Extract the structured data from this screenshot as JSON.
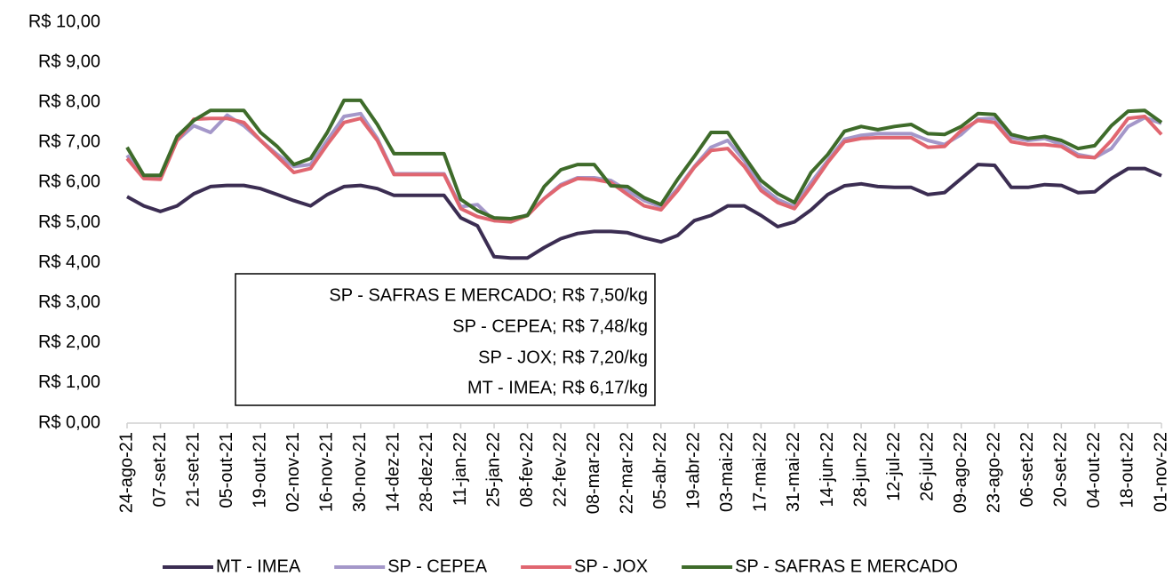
{
  "chart_data": {
    "type": "line",
    "categories": [
      "24-ago-21",
      null,
      "07-set-21",
      null,
      "21-set-21",
      null,
      "05-out-21",
      null,
      "19-out-21",
      null,
      "02-nov-21",
      null,
      "16-nov-21",
      null,
      "30-nov-21",
      null,
      "14-dez-21",
      null,
      "28-dez-21",
      null,
      "11-jan-22",
      null,
      "25-jan-22",
      null,
      "08-fev-22",
      null,
      "22-fev-22",
      null,
      "08-mar-22",
      null,
      "22-mar-22",
      null,
      "05-abr-22",
      null,
      "19-abr-22",
      null,
      "03-mai-22",
      null,
      "17-mai-22",
      null,
      "31-mai-22",
      null,
      "14-jun-22",
      null,
      "28-jun-22",
      null,
      "12-jul-22",
      null,
      "26-jul-22",
      null,
      "09-ago-22",
      null,
      "23-ago-22",
      null,
      "06-set-22",
      null,
      "20-set-22",
      null,
      "04-out-22",
      null,
      "18-out-22",
      null,
      "01-nov-22"
    ],
    "series": [
      {
        "name": "MT - IMEA",
        "color": "#3b2d52",
        "values": [
          5.65,
          5.42,
          5.28,
          5.42,
          5.72,
          5.9,
          5.93,
          5.93,
          5.85,
          5.7,
          5.55,
          5.42,
          5.7,
          5.9,
          5.93,
          5.85,
          5.68,
          5.68,
          5.68,
          5.68,
          5.12,
          4.92,
          4.15,
          4.12,
          4.12,
          4.38,
          4.6,
          4.73,
          4.78,
          4.78,
          4.75,
          4.62,
          4.52,
          4.68,
          5.05,
          5.18,
          5.42,
          5.42,
          5.18,
          4.9,
          5.02,
          5.32,
          5.7,
          5.92,
          5.97,
          5.9,
          5.88,
          5.88,
          5.7,
          5.75,
          6.1,
          6.45,
          6.43,
          5.88,
          5.88,
          5.95,
          5.93,
          5.75,
          5.77,
          6.1,
          6.35,
          6.35,
          6.17
        ]
      },
      {
        "name": "SP - CEPEA",
        "color": "#a497c9",
        "values": [
          6.68,
          6.12,
          6.1,
          7.05,
          7.42,
          7.25,
          7.68,
          7.42,
          7.05,
          6.7,
          6.4,
          6.45,
          7.05,
          7.65,
          7.72,
          7.1,
          6.22,
          6.22,
          6.22,
          6.22,
          5.4,
          5.45,
          5.05,
          5.05,
          5.2,
          5.6,
          5.95,
          6.12,
          6.12,
          6.05,
          5.8,
          5.55,
          5.4,
          5.85,
          6.4,
          6.88,
          7.05,
          6.55,
          5.9,
          5.58,
          5.4,
          6.0,
          6.55,
          7.08,
          7.18,
          7.22,
          7.22,
          7.22,
          7.05,
          6.95,
          7.2,
          7.58,
          7.6,
          7.12,
          7.05,
          7.1,
          6.95,
          6.7,
          6.62,
          6.85,
          7.4,
          7.62,
          7.48
        ]
      },
      {
        "name": "SP - JOX",
        "color": "#e06670",
        "values": [
          6.6,
          6.1,
          6.08,
          7.05,
          7.58,
          7.6,
          7.6,
          7.5,
          7.05,
          6.65,
          6.25,
          6.35,
          6.95,
          7.5,
          7.6,
          7.05,
          6.2,
          6.2,
          6.2,
          6.2,
          5.35,
          5.15,
          5.05,
          5.02,
          5.18,
          5.6,
          5.92,
          6.1,
          6.08,
          6.0,
          5.7,
          5.42,
          5.32,
          5.8,
          6.38,
          6.8,
          6.85,
          6.4,
          5.8,
          5.5,
          5.35,
          5.9,
          6.5,
          7.02,
          7.1,
          7.12,
          7.12,
          7.12,
          6.88,
          6.9,
          7.3,
          7.55,
          7.5,
          7.02,
          6.95,
          6.95,
          6.9,
          6.65,
          6.62,
          7.05,
          7.6,
          7.65,
          7.2
        ]
      },
      {
        "name": "SP - SAFRAS E MERCADO",
        "color": "#3e6b2a",
        "values": [
          6.88,
          6.18,
          6.18,
          7.15,
          7.55,
          7.8,
          7.8,
          7.8,
          7.25,
          6.9,
          6.45,
          6.6,
          7.25,
          8.05,
          8.05,
          7.45,
          6.72,
          6.72,
          6.72,
          6.72,
          5.58,
          5.3,
          5.12,
          5.1,
          5.18,
          5.9,
          6.32,
          6.45,
          6.45,
          5.92,
          5.9,
          5.62,
          5.45,
          6.08,
          6.65,
          7.25,
          7.25,
          6.65,
          6.05,
          5.72,
          5.5,
          6.25,
          6.7,
          7.28,
          7.4,
          7.32,
          7.4,
          7.45,
          7.22,
          7.2,
          7.4,
          7.72,
          7.7,
          7.2,
          7.1,
          7.15,
          7.05,
          6.85,
          6.92,
          7.42,
          7.78,
          7.8,
          7.5
        ]
      }
    ],
    "ylim": [
      0,
      10
    ],
    "yticks": [
      {
        "value": 0,
        "label": "R$ 0,00"
      },
      {
        "value": 1,
        "label": "R$ 1,00"
      },
      {
        "value": 2,
        "label": "R$ 2,00"
      },
      {
        "value": 3,
        "label": "R$ 3,00"
      },
      {
        "value": 4,
        "label": "R$ 4,00"
      },
      {
        "value": 5,
        "label": "R$ 5,00"
      },
      {
        "value": 6,
        "label": "R$ 6,00"
      },
      {
        "value": 7,
        "label": "R$ 7,00"
      },
      {
        "value": 8,
        "label": "R$ 8,00"
      },
      {
        "value": 9,
        "label": "R$ 9,00"
      },
      {
        "value": 10,
        "label": "R$ 10,00"
      }
    ],
    "annotations": [
      "SP - SAFRAS E MERCADO; R$ 7,50/kg",
      "SP - CEPEA; R$ 7,48/kg",
      "SP - JOX; R$ 7,20/kg",
      "MT - IMEA; R$ 6,17/kg"
    ],
    "legend": "bottom"
  }
}
